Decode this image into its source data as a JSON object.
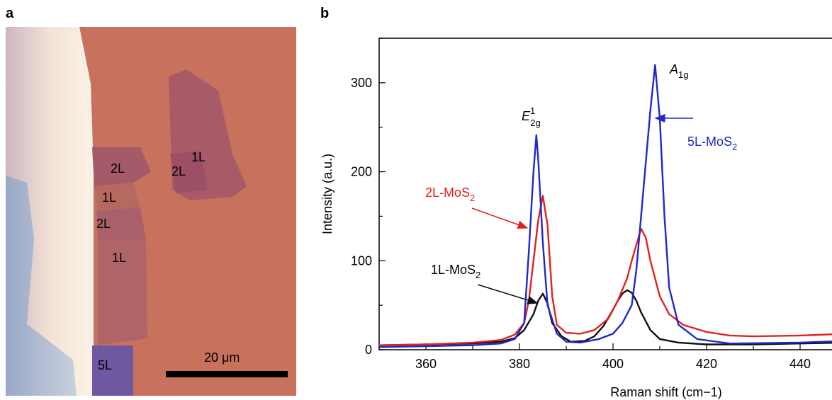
{
  "panel_a": {
    "label": "a",
    "layer_labels": [
      "2L",
      "1L",
      "2L",
      "1L",
      "2L",
      "1L",
      "5L"
    ],
    "scale_bar_label": "20 μm",
    "colors": {
      "substrate": "#c8725d",
      "bilayer": "#a45a68",
      "monolayer": "#b5695f",
      "five_layer": "#6e58a0",
      "thick_flake": "#ecd9cf"
    }
  },
  "panel_b": {
    "label": "b",
    "chart_data": {
      "type": "line",
      "xlabel": "Raman shift (cm−1)",
      "ylabel": "Intensity (a.u.)",
      "xlim": [
        350,
        450
      ],
      "ylim": [
        0,
        350
      ],
      "x_ticks": [
        360,
        380,
        400,
        420,
        440
      ],
      "y_ticks": [
        0,
        100,
        200,
        300
      ],
      "peak_labels": [
        "E12g",
        "A1g"
      ],
      "series": [
        {
          "name": "1L-MoS2",
          "color": "#111111",
          "points": [
            [
              350,
              5
            ],
            [
              360,
              6
            ],
            [
              370,
              7
            ],
            [
              376,
              9
            ],
            [
              379,
              13
            ],
            [
              381,
              22
            ],
            [
              383,
              40
            ],
            [
              384,
              55
            ],
            [
              385,
              63
            ],
            [
              386,
              52
            ],
            [
              387,
              30
            ],
            [
              389,
              15
            ],
            [
              391,
              9
            ],
            [
              394,
              10
            ],
            [
              396,
              15
            ],
            [
              398,
              27
            ],
            [
              400,
              45
            ],
            [
              401,
              55
            ],
            [
              402,
              63
            ],
            [
              403,
              67
            ],
            [
              404,
              64
            ],
            [
              405,
              55
            ],
            [
              406,
              42
            ],
            [
              408,
              22
            ],
            [
              410,
              12
            ],
            [
              414,
              8
            ],
            [
              420,
              6
            ],
            [
              430,
              6
            ],
            [
              440,
              7
            ],
            [
              450,
              8
            ]
          ]
        },
        {
          "name": "2L-MoS2",
          "color": "#e0231f",
          "points": [
            [
              350,
              5
            ],
            [
              360,
              6
            ],
            [
              370,
              8
            ],
            [
              376,
              11
            ],
            [
              379,
              17
            ],
            [
              381,
              30
            ],
            [
              382,
              55
            ],
            [
              383,
              100
            ],
            [
              384,
              145
            ],
            [
              385,
              173
            ],
            [
              386,
              140
            ],
            [
              387,
              60
            ],
            [
              388,
              28
            ],
            [
              390,
              19
            ],
            [
              393,
              18
            ],
            [
              396,
              22
            ],
            [
              399,
              35
            ],
            [
              401,
              55
            ],
            [
              403,
              80
            ],
            [
              404,
              100
            ],
            [
              405,
              118
            ],
            [
              406,
              136
            ],
            [
              407,
              126
            ],
            [
              408,
              100
            ],
            [
              409,
              80
            ],
            [
              410,
              60
            ],
            [
              412,
              40
            ],
            [
              415,
              28
            ],
            [
              420,
              20
            ],
            [
              425,
              16
            ],
            [
              430,
              15
            ],
            [
              440,
              16
            ],
            [
              450,
              18
            ]
          ]
        },
        {
          "name": "5L-MoS2",
          "color": "#1f28c8",
          "points": [
            [
              350,
              3
            ],
            [
              360,
              4
            ],
            [
              370,
              5
            ],
            [
              376,
              7
            ],
            [
              379,
              12
            ],
            [
              381,
              30
            ],
            [
              382,
              110
            ],
            [
              383,
              200
            ],
            [
              383.6,
              241
            ],
            [
              384,
              215
            ],
            [
              385,
              120
            ],
            [
              386,
              50
            ],
            [
              388,
              18
            ],
            [
              390,
              9
            ],
            [
              393,
              8
            ],
            [
              397,
              12
            ],
            [
              400,
              18
            ],
            [
              402,
              30
            ],
            [
              404,
              50
            ],
            [
              405,
              90
            ],
            [
              406,
              150
            ],
            [
              407,
              210
            ],
            [
              408,
              270
            ],
            [
              409,
              320
            ],
            [
              410,
              260
            ],
            [
              411,
              150
            ],
            [
              412,
              70
            ],
            [
              414,
              28
            ],
            [
              418,
              12
            ],
            [
              425,
              7
            ],
            [
              440,
              8
            ],
            [
              450,
              10
            ]
          ]
        }
      ]
    }
  }
}
